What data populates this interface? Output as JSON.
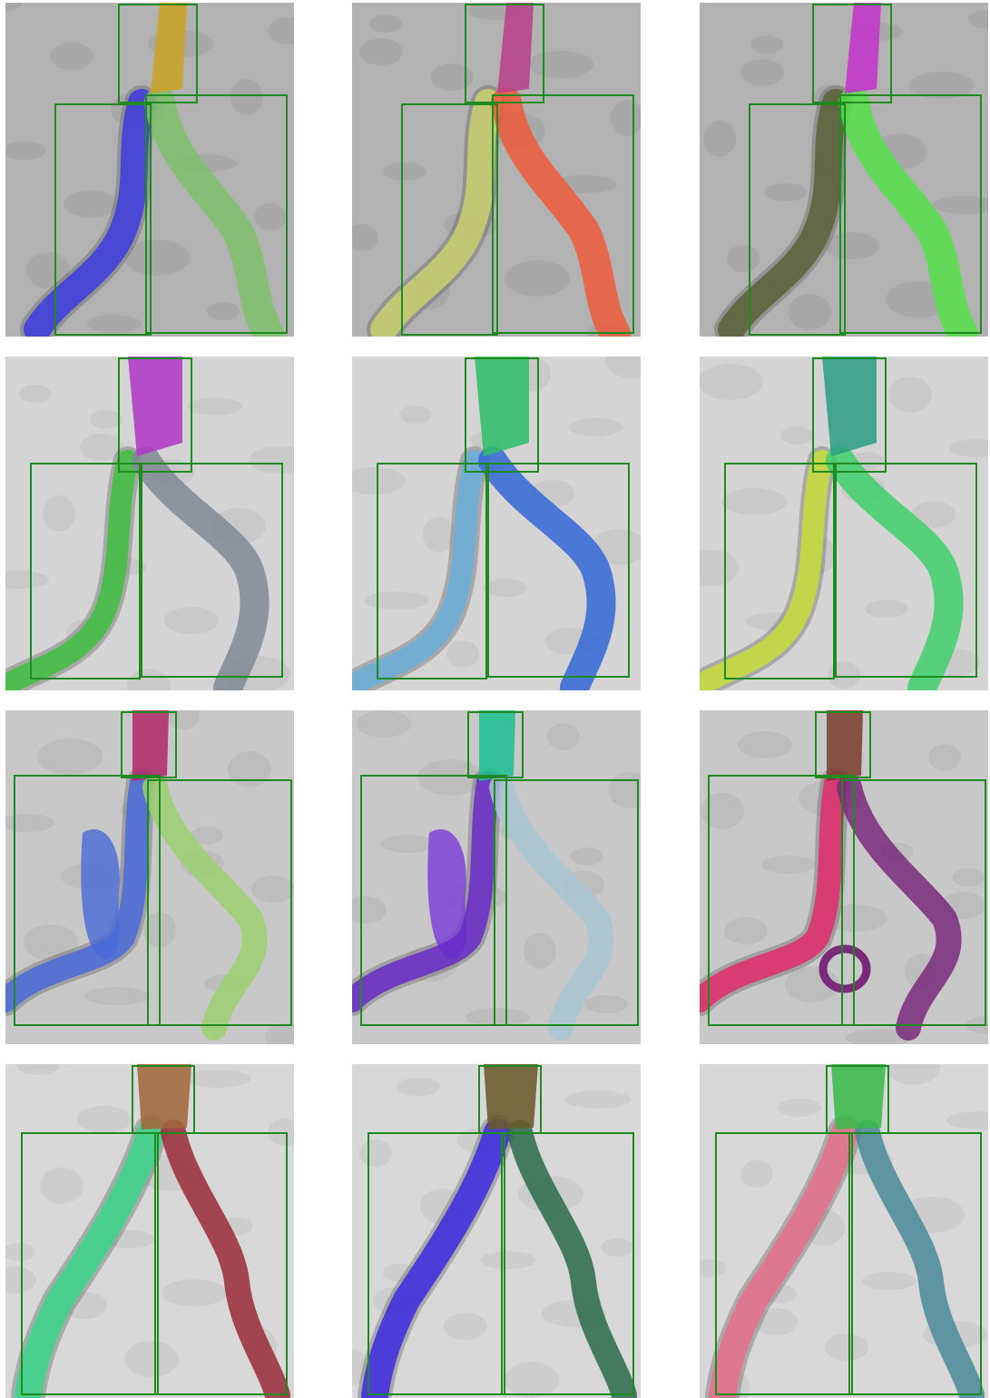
{
  "figure": {
    "panels": [
      {
        "row": 0,
        "col": 0,
        "bg": "#b2b2b2",
        "top_color": "#c9a227",
        "left_color": "#3b3be0",
        "right_color": "#7fbf6a"
      },
      {
        "row": 0,
        "col": 1,
        "bg": "#b2b2b2",
        "top_color": "#b8428a",
        "left_color": "#c8d070",
        "right_color": "#ee5a3a"
      },
      {
        "row": 0,
        "col": 2,
        "bg": "#b2b2b2",
        "top_color": "#c234c8",
        "left_color": "#5a6136",
        "right_color": "#55e04a"
      },
      {
        "row": 1,
        "col": 0,
        "bg": "#d4d4d4",
        "top_color": "#b23ac6",
        "left_color": "#3fbf3f",
        "right_color": "#7f8a94"
      },
      {
        "row": 1,
        "col": 1,
        "bg": "#d4d4d4",
        "top_color": "#2fbf6a",
        "left_color": "#6aaed8",
        "right_color": "#3366d6"
      },
      {
        "row": 1,
        "col": 2,
        "bg": "#d4d4d4",
        "top_color": "#2f9e82",
        "left_color": "#c8de3a",
        "right_color": "#3fcf6a"
      },
      {
        "row": 2,
        "col": 0,
        "bg": "#c8c8c8",
        "top_color": "#b02a6a",
        "left_color": "#4a6ad8",
        "right_color": "#9ccf70",
        "blob_color": "#4a6ad8"
      },
      {
        "row": 2,
        "col": 1,
        "bg": "#c8c8c8",
        "top_color": "#1fbf8f",
        "left_color": "#6a2ac8",
        "right_color": "#a9c6d4",
        "blob_color": "#7a3ad8"
      },
      {
        "row": 2,
        "col": 2,
        "bg": "#c8c8c8",
        "top_color": "#7a4030",
        "left_color": "#e02a6a",
        "right_color": "#7a2a7a",
        "loop_color": "#7a2a7a"
      },
      {
        "row": 3,
        "col": 0,
        "bg": "#d8d8d8",
        "top_color": "#a0683a",
        "left_color": "#3ad68a",
        "right_color": "#9a2a3a"
      },
      {
        "row": 3,
        "col": 1,
        "bg": "#d8d8d8",
        "top_color": "#6a5a2a",
        "left_color": "#3a2ae0",
        "right_color": "#2a6a4a"
      },
      {
        "row": 3,
        "col": 2,
        "bg": "#d8d8d8",
        "top_color": "#3ab84a",
        "left_color": "#e8708a",
        "right_color": "#4a8a9a"
      }
    ],
    "box_color": "#1f8a1f"
  }
}
